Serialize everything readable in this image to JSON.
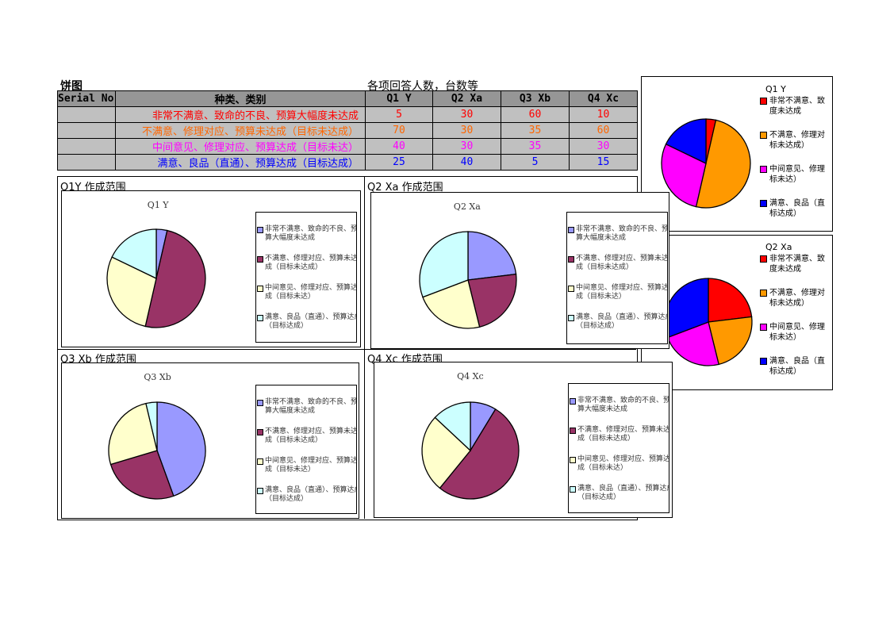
{
  "page": {
    "title": "饼图",
    "subtitle": "各项回答人数，台数等"
  },
  "table": {
    "headers": [
      "Serial No",
      "种类、类别",
      "Q1 Y",
      "Q2 Xa",
      "Q3 Xb",
      "Q4 Xc"
    ],
    "rows": [
      {
        "category": "非常不满意、致命的不良、预算大幅度未达成",
        "values": [
          "5",
          "30",
          "60",
          "10"
        ],
        "color": "#ff0000"
      },
      {
        "category": "不满意、修理对应、预算未达成（目标未达成）",
        "values": [
          "70",
          "30",
          "35",
          "60"
        ],
        "color": "#ff6600"
      },
      {
        "category": "中间意见、修理对应、预算达成（目标未达）",
        "values": [
          "40",
          "30",
          "35",
          "30"
        ],
        "color": "#ff00ff"
      },
      {
        "category": "满意、良品（直通）、预算达成（目标达成）",
        "values": [
          "25",
          "40",
          "5",
          "15"
        ],
        "color": "#0000ff"
      }
    ]
  },
  "sections": [
    "Q1Y 作成范围",
    "Q2 Xa 作成范围",
    "Q3 Xb 作成范围",
    "Q4 Xc 作成范围"
  ],
  "chart_data": [
    {
      "type": "pie",
      "title": "Q1 Y",
      "categories": [
        "非常不满意、致命的不良、预算大幅度未达成",
        "不满意、修理对应、预算未达成（目标未达成）",
        "中间意见、修理对应、预算达成（目标未达）",
        "满意、良品（直通）、预算达成（目标达成）"
      ],
      "values": [
        5,
        70,
        40,
        25
      ],
      "colors": [
        "#9999ff",
        "#993366",
        "#ffffcc",
        "#ccffff"
      ]
    },
    {
      "type": "pie",
      "title": "Q2 Xa",
      "categories": [
        "非常不满意、致命的不良、预算大幅度未达成",
        "不满意、修理对应、预算未达成（目标未达成）",
        "中间意见、修理对应、预算达成（目标未达）",
        "满意、良品（直通）、预算达成（目标达成）"
      ],
      "values": [
        30,
        30,
        30,
        40
      ],
      "colors": [
        "#9999ff",
        "#993366",
        "#ffffcc",
        "#ccffff"
      ]
    },
    {
      "type": "pie",
      "title": "Q3 Xb",
      "categories": [
        "非常不满意、致命的不良、预算大幅度未达成",
        "不满意、修理对应、预算未达成（目标未达成）",
        "中间意见、修理对应、预算达成（目标未达）",
        "满意、良品（直通）、预算达成（目标达成）"
      ],
      "values": [
        60,
        35,
        35,
        5
      ],
      "colors": [
        "#9999ff",
        "#993366",
        "#ffffcc",
        "#ccffff"
      ]
    },
    {
      "type": "pie",
      "title": "Q4 Xc",
      "categories": [
        "非常不满意、致命的不良、预算大幅度未达成",
        "不满意、修理对应、预算未达成（目标未达成）",
        "中间意见、修理对应、预算达成（目标未达）",
        "满意、良品（直通）、预算达成（目标达成）"
      ],
      "values": [
        10,
        60,
        30,
        15
      ],
      "colors": [
        "#9999ff",
        "#993366",
        "#ffffcc",
        "#ccffff"
      ]
    },
    {
      "type": "pie",
      "title": "Q1 Y",
      "categories": [
        "非常不满意、致命的不良、预算大幅度未达成",
        "不满意、修理对应、预算未达成（目标未达成）",
        "中间意见、修理对应、预算达成（目标未达）",
        "满意、良品（直通）、预算达成（目标达成）"
      ],
      "values": [
        5,
        70,
        40,
        25
      ],
      "colors": [
        "#ff0000",
        "#ff9900",
        "#ff00ff",
        "#0000ff"
      ]
    },
    {
      "type": "pie",
      "title": "Q2 Xa",
      "categories": [
        "非常不满意、致命的不良、预算大幅度未达成",
        "不满意、修理对应、预算未达成（目标未达成）",
        "中间意见、修理对应、预算达成（目标未达）",
        "满意、良品（直通）、预算达成（目标达成）"
      ],
      "values": [
        30,
        30,
        30,
        40
      ],
      "colors": [
        "#ff0000",
        "#ff9900",
        "#ff00ff",
        "#0000ff"
      ]
    }
  ]
}
